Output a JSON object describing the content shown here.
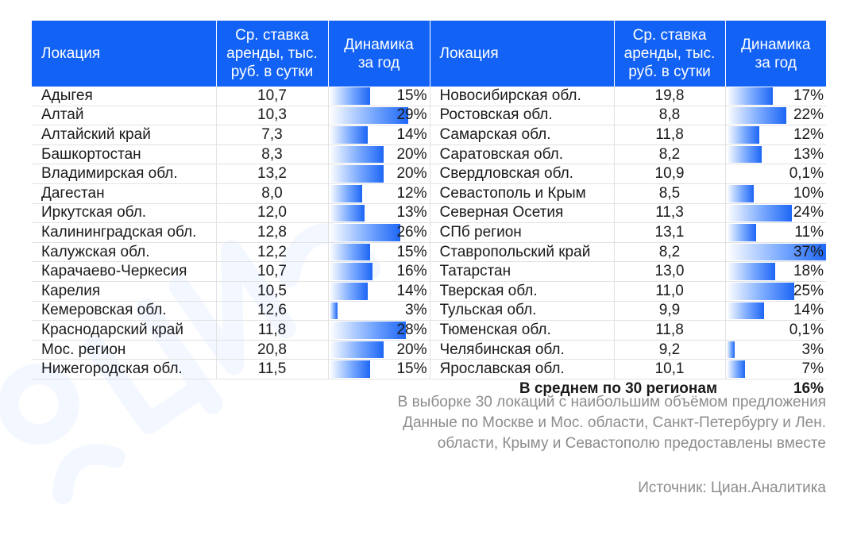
{
  "header": {
    "location": "Локация",
    "rate_line1": "Ср. ставка",
    "rate_line2": "аренды, тыс.",
    "rate_line3": "руб. в сутки",
    "dynamics_line1": "Динамика",
    "dynamics_line2": "за год"
  },
  "chart_data": {
    "type": "table",
    "columns": [
      "Локация",
      "Ср. ставка аренды, тыс. руб. в сутки",
      "Динамика за год"
    ],
    "left_rows": [
      {
        "location": "Адыгея",
        "rate": "10,7",
        "dynamics": "15%",
        "dynamics_value": 15
      },
      {
        "location": "Алтай",
        "rate": "10,3",
        "dynamics": "29%",
        "dynamics_value": 29
      },
      {
        "location": "Алтайский край",
        "rate": "7,3",
        "dynamics": "14%",
        "dynamics_value": 14
      },
      {
        "location": "Башкортостан",
        "rate": "8,3",
        "dynamics": "20%",
        "dynamics_value": 20
      },
      {
        "location": "Владимирская обл.",
        "rate": "13,2",
        "dynamics": "20%",
        "dynamics_value": 20
      },
      {
        "location": "Дагестан",
        "rate": "8,0",
        "dynamics": "12%",
        "dynamics_value": 12
      },
      {
        "location": "Иркутская обл.",
        "rate": "12,0",
        "dynamics": "13%",
        "dynamics_value": 13
      },
      {
        "location": "Калининградская обл.",
        "rate": "12,8",
        "dynamics": "26%",
        "dynamics_value": 26
      },
      {
        "location": "Калужская обл.",
        "rate": "12,2",
        "dynamics": "15%",
        "dynamics_value": 15
      },
      {
        "location": "Карачаево-Черкесия",
        "rate": "10,7",
        "dynamics": "16%",
        "dynamics_value": 16
      },
      {
        "location": "Карелия",
        "rate": "10,5",
        "dynamics": "14%",
        "dynamics_value": 14
      },
      {
        "location": "Кемеровская обл.",
        "rate": "12,6",
        "dynamics": "3%",
        "dynamics_value": 3
      },
      {
        "location": "Краснодарский край",
        "rate": "11,8",
        "dynamics": "28%",
        "dynamics_value": 28
      },
      {
        "location": "Мос. регион",
        "rate": "20,8",
        "dynamics": "20%",
        "dynamics_value": 20
      },
      {
        "location": "Нижегородская обл.",
        "rate": "11,5",
        "dynamics": "15%",
        "dynamics_value": 15
      }
    ],
    "right_rows": [
      {
        "location": "Новосибирская обл.",
        "rate": "19,8",
        "dynamics": "17%",
        "dynamics_value": 17
      },
      {
        "location": "Ростовская обл.",
        "rate": "8,8",
        "dynamics": "22%",
        "dynamics_value": 22
      },
      {
        "location": "Самарская обл.",
        "rate": "11,8",
        "dynamics": "12%",
        "dynamics_value": 12
      },
      {
        "location": "Саратовская обл.",
        "rate": "8,2",
        "dynamics": "13%",
        "dynamics_value": 13
      },
      {
        "location": "Свердловская обл.",
        "rate": "10,9",
        "dynamics": "0,1%",
        "dynamics_value": 0.1
      },
      {
        "location": "Севастополь и Крым",
        "rate": "8,5",
        "dynamics": "10%",
        "dynamics_value": 10
      },
      {
        "location": "Северная Осетия",
        "rate": "11,3",
        "dynamics": "24%",
        "dynamics_value": 24
      },
      {
        "location": "СПб регион",
        "rate": "13,1",
        "dynamics": "11%",
        "dynamics_value": 11
      },
      {
        "location": "Ставропольский край",
        "rate": "8,2",
        "dynamics": "37%",
        "dynamics_value": 37
      },
      {
        "location": "Татарстан",
        "rate": "13,0",
        "dynamics": "18%",
        "dynamics_value": 18
      },
      {
        "location": "Тверская обл.",
        "rate": "11,0",
        "dynamics": "25%",
        "dynamics_value": 25
      },
      {
        "location": "Тульская обл.",
        "rate": "9,9",
        "dynamics": "14%",
        "dynamics_value": 14
      },
      {
        "location": "Тюменская обл.",
        "rate": "11,8",
        "dynamics": "0,1%",
        "dynamics_value": 0.1
      },
      {
        "location": "Челябинская обл.",
        "rate": "9,2",
        "dynamics": "3%",
        "dynamics_value": 3
      },
      {
        "location": "Ярославская обл.",
        "rate": "10,1",
        "dynamics": "7%",
        "dynamics_value": 7
      }
    ],
    "bar_max": 37
  },
  "average": {
    "label": "В среднем по 30 регионам",
    "value": "16%"
  },
  "notes": {
    "line1": "В выборке 30 локаций с наибольшим объёмом предложения",
    "line2": "Данные по Москве и Мос. области, Санкт-Петербургу и Лен.",
    "line3": "области, Крыму и Севастополю предоставлены вместе"
  },
  "source": "Источник: Циан.Аналитика",
  "colors": {
    "header_bg": "#1262f6",
    "bar_end": "#1d66f5",
    "note_text": "#8c8c8c"
  }
}
